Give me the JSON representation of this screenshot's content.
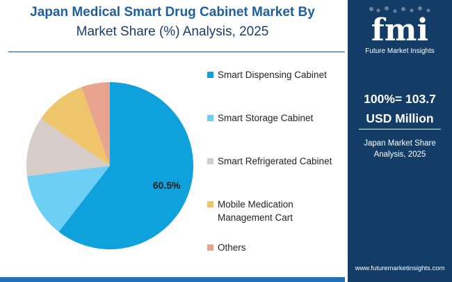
{
  "header": {
    "title_line1": "Japan Medical Smart Drug Cabinet Market By",
    "title_line2": "Market Share (%) Analysis, 2025"
  },
  "chart_data": {
    "type": "pie",
    "title": "Japan Medical Smart Drug Cabinet Market By Market Share (%) Analysis, 2025",
    "categories": [
      "Smart Dispensing Cabinet",
      "Smart Storage Cabinet",
      "Smart Refrigerated Cabinet",
      "Mobile Medication Management Cart",
      "Others"
    ],
    "values": [
      60.5,
      12.5,
      11.5,
      10.0,
      5.5
    ],
    "colors": [
      "#0ea1db",
      "#6ecff5",
      "#d6cdc8",
      "#eec56a",
      "#e8a48f"
    ],
    "data_labels": [
      "60.5%",
      "",
      "",
      "",
      ""
    ],
    "legend_position": "right",
    "start_angle_deg": 0,
    "direction": "clockwise"
  },
  "legend": {
    "items": [
      {
        "label": "Smart Dispensing Cabinet",
        "color": "#0ea1db"
      },
      {
        "label": "Smart Storage Cabinet",
        "color": "#6ecff5"
      },
      {
        "label": "Smart Refrigerated Cabinet",
        "color": "#d6cdc8"
      },
      {
        "label_line1": "Mobile Medication",
        "label_line2": "Management Cart",
        "color": "#eec56a"
      },
      {
        "label": "Others",
        "color": "#e8a48f"
      }
    ]
  },
  "side_panel": {
    "logo_text": "fmi",
    "logo_subtitle": "Future Market Insights",
    "total_line1": "100%= 103.7",
    "total_line2": "USD Million",
    "note_line1": "Japan Market Share",
    "note_line2": "Analysis, 2025",
    "url": "www.futuremarketinsights.com",
    "background": "#133d66"
  }
}
